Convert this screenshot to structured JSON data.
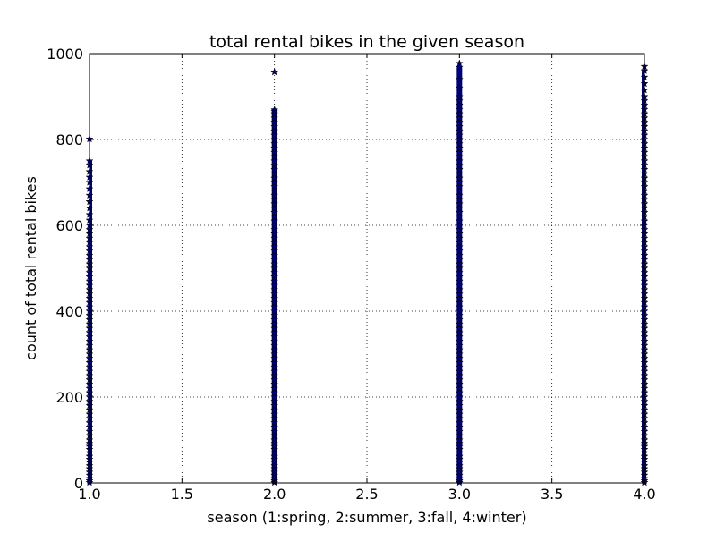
{
  "chart_data": {
    "type": "scatter",
    "title": "total rental bikes in the given season",
    "xlabel": "season (1:spring, 2:summer, 3:fall, 4:winter)",
    "ylabel": "count of total rental bikes",
    "xlim": [
      1.0,
      4.0
    ],
    "ylim": [
      0,
      1000
    ],
    "x_ticks": [
      "1.0",
      "1.5",
      "2.0",
      "2.5",
      "3.0",
      "3.5",
      "4.0"
    ],
    "y_ticks": [
      "0",
      "200",
      "400",
      "600",
      "800",
      "1000"
    ],
    "grid": true,
    "marker": "star",
    "marker_color": "#00007f",
    "series": [
      {
        "x": 1,
        "y_min": 1,
        "y_max": 801,
        "points": [
          1,
          5,
          10,
          18,
          25,
          33,
          40,
          48,
          55,
          62,
          70,
          78,
          85,
          92,
          100,
          110,
          120,
          130,
          140,
          150,
          160,
          170,
          180,
          190,
          200,
          210,
          220,
          230,
          240,
          250,
          260,
          270,
          280,
          290,
          300,
          310,
          320,
          330,
          340,
          350,
          360,
          370,
          380,
          390,
          400,
          410,
          420,
          430,
          440,
          450,
          460,
          470,
          480,
          490,
          500,
          510,
          520,
          530,
          540,
          550,
          560,
          570,
          580,
          590,
          600,
          612,
          625,
          640,
          655,
          670,
          685,
          700,
          712,
          725,
          740,
          750,
          801
        ]
      },
      {
        "x": 2,
        "y_min": 1,
        "y_max": 957,
        "points": [
          1,
          5,
          10,
          18,
          25,
          33,
          40,
          48,
          55,
          62,
          70,
          78,
          85,
          92,
          100,
          110,
          120,
          130,
          140,
          150,
          160,
          170,
          180,
          190,
          200,
          210,
          220,
          230,
          240,
          250,
          260,
          270,
          280,
          290,
          300,
          310,
          320,
          330,
          340,
          350,
          360,
          370,
          380,
          390,
          400,
          410,
          420,
          430,
          440,
          450,
          460,
          470,
          480,
          490,
          500,
          510,
          520,
          530,
          540,
          550,
          560,
          570,
          580,
          590,
          600,
          610,
          620,
          630,
          640,
          650,
          660,
          670,
          680,
          690,
          700,
          710,
          720,
          730,
          740,
          750,
          760,
          770,
          780,
          790,
          800,
          810,
          820,
          830,
          840,
          850,
          860,
          866,
          869,
          957
        ]
      },
      {
        "x": 3,
        "y_min": 1,
        "y_max": 977,
        "points": [
          1,
          5,
          10,
          18,
          25,
          33,
          40,
          48,
          55,
          62,
          70,
          78,
          85,
          92,
          100,
          110,
          120,
          130,
          140,
          150,
          160,
          170,
          180,
          190,
          200,
          210,
          220,
          230,
          240,
          250,
          260,
          270,
          280,
          290,
          300,
          310,
          320,
          330,
          340,
          350,
          360,
          370,
          380,
          390,
          400,
          410,
          420,
          430,
          440,
          450,
          460,
          470,
          480,
          490,
          500,
          510,
          520,
          530,
          540,
          550,
          560,
          570,
          580,
          590,
          600,
          610,
          620,
          630,
          640,
          650,
          660,
          670,
          680,
          690,
          700,
          710,
          720,
          730,
          740,
          750,
          760,
          770,
          780,
          790,
          800,
          810,
          820,
          830,
          840,
          850,
          860,
          870,
          880,
          890,
          900,
          920,
          940,
          968,
          977
        ]
      },
      {
        "x": 4,
        "y_min": 1,
        "y_max": 970,
        "points": [
          1,
          5,
          10,
          18,
          25,
          33,
          40,
          48,
          55,
          62,
          70,
          78,
          85,
          92,
          100,
          110,
          120,
          130,
          140,
          150,
          160,
          170,
          180,
          190,
          200,
          210,
          220,
          230,
          240,
          250,
          260,
          270,
          280,
          290,
          300,
          310,
          320,
          330,
          340,
          350,
          360,
          370,
          380,
          390,
          400,
          410,
          420,
          430,
          440,
          450,
          460,
          470,
          480,
          490,
          500,
          510,
          520,
          530,
          540,
          550,
          560,
          570,
          580,
          590,
          600,
          610,
          620,
          630,
          640,
          650,
          660,
          670,
          680,
          690,
          700,
          710,
          720,
          730,
          740,
          750,
          760,
          770,
          780,
          790,
          800,
          810,
          820,
          830,
          840,
          850,
          860,
          870,
          880,
          890,
          900,
          915,
          930,
          945,
          960,
          970
        ]
      }
    ]
  }
}
